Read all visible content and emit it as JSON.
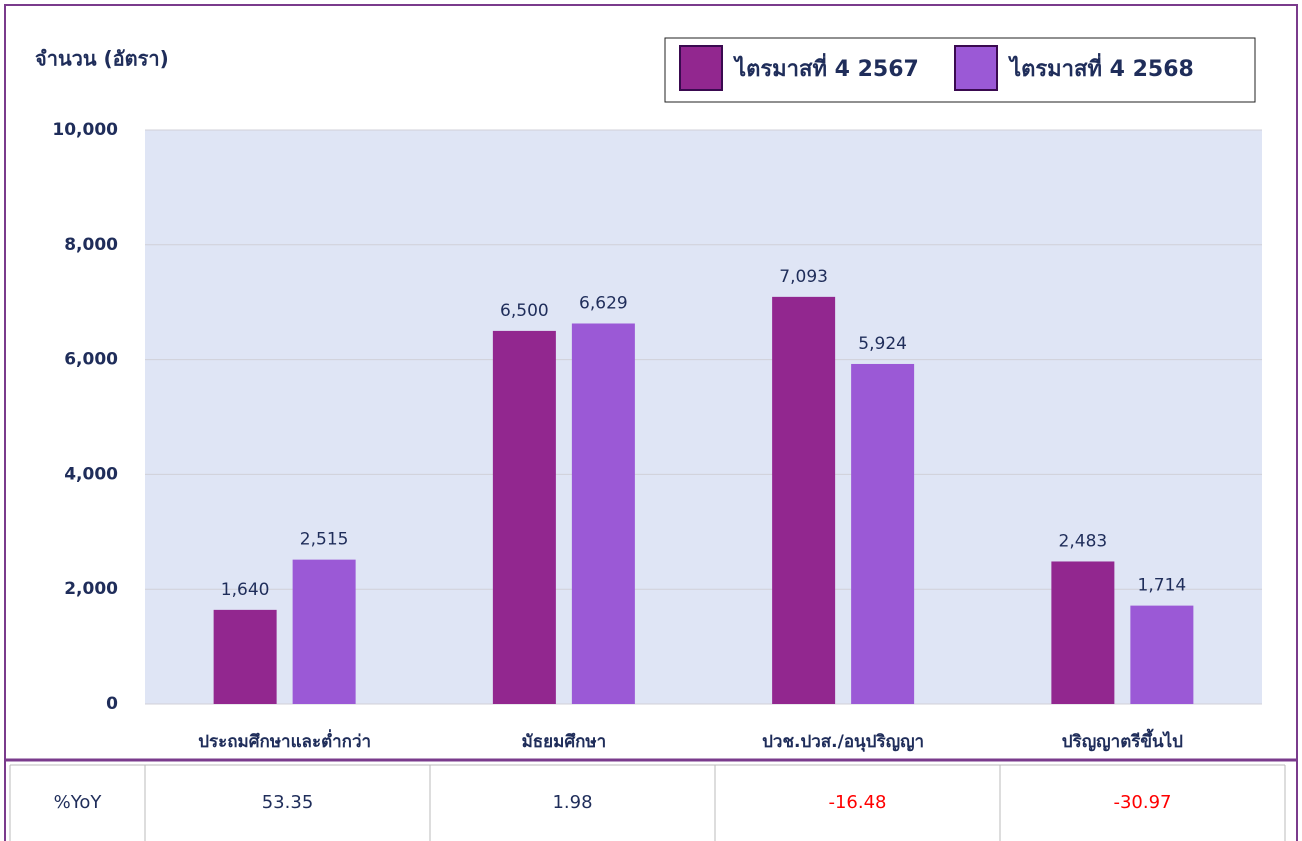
{
  "chart_data": {
    "type": "bar",
    "y_label": "จำนวน (อัตรา)",
    "categories": [
      "ประถมศึกษาและต่ำกว่า",
      "มัธยมศึกษา",
      "ปวช.ปวส./อนุปริญญา",
      "ปริญญาตรีขึ้นไป"
    ],
    "series": [
      {
        "name": "ไตรมาสที่ 4 2567",
        "color": "#92278f",
        "values": [
          1640,
          6500,
          7093,
          2483
        ],
        "value_labels": [
          "1,640",
          "6,500",
          "7,093",
          "2,483"
        ]
      },
      {
        "name": "ไตรมาสที่ 4 2568",
        "color": "#9b59d6",
        "values": [
          2515,
          6629,
          5924,
          1714
        ],
        "value_labels": [
          "2,515",
          "6,629",
          "5,924",
          "1,714"
        ]
      }
    ],
    "ylim": [
      0,
      10000
    ],
    "yticks": [
      0,
      {
        "value": 2000,
        "label": "2,000"
      },
      {
        "value": 4000,
        "label": "4,000"
      },
      {
        "value": 6000,
        "label": "6,000"
      },
      {
        "value": 8000,
        "label": "8,000"
      },
      {
        "value": 10000,
        "label": "10,000"
      }
    ],
    "grid": true,
    "legend_position": "top-right"
  },
  "table": {
    "row_label": "%YoY",
    "values": [
      53.35,
      1.98,
      -16.48,
      -30.97
    ],
    "negative_color": "#ff0000",
    "positive_color": "#1f2d5a"
  }
}
